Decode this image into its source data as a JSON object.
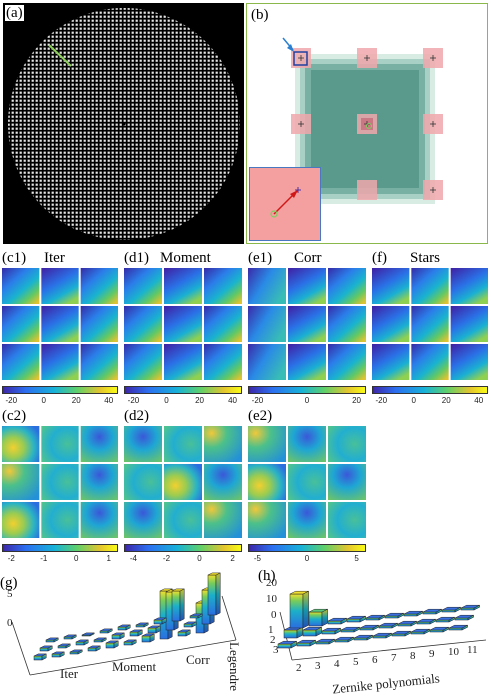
{
  "labels": {
    "a": "(a)",
    "b": "(b)",
    "c1": "(c1)",
    "c1_name": "Iter",
    "d1": "(d1)",
    "d1_name": "Moment",
    "e1": "(e1)",
    "e1_name": "Corr",
    "f": "(f)",
    "f_name": "Stars",
    "c2": "(c2)",
    "d2": "(d2)",
    "e2": "(e2)",
    "g": "(g)",
    "h": "(h)"
  },
  "colorbars": {
    "c1": [
      "-20",
      "0",
      "20",
      "40"
    ],
    "d1": [
      "-20",
      "0",
      "20",
      "40"
    ],
    "e1": [
      "-20",
      "0",
      "20"
    ],
    "f": [
      "-20",
      "0",
      "20",
      "40"
    ],
    "c2": [
      "-2",
      "-1",
      "0",
      "1"
    ],
    "d2": [
      "-4",
      "-2",
      "0",
      "2"
    ],
    "e2": [
      "-5",
      "0",
      "5"
    ]
  },
  "chart_g": {
    "y_ticks": [
      "5",
      "0"
    ],
    "x_groups": [
      "Iter",
      "Moment",
      "Corr"
    ],
    "y_axis_label": "Legendre"
  },
  "chart_h": {
    "z_ticks": [
      "20",
      "10",
      "0"
    ],
    "y_ticks": [
      "1",
      "2",
      "3"
    ],
    "x_ticks": [
      "2",
      "3",
      "4",
      "5",
      "6",
      "7",
      "8",
      "9",
      "10",
      "11"
    ],
    "x_axis_label": "Zernike polynomials"
  },
  "colors": {
    "panel_b_border": "#8ab84a",
    "inset_border": "#4a78c0",
    "inset_bg": "#f4a0a0",
    "square_fill": "#5a9a8c",
    "arrow": "#2a7fd0"
  }
}
